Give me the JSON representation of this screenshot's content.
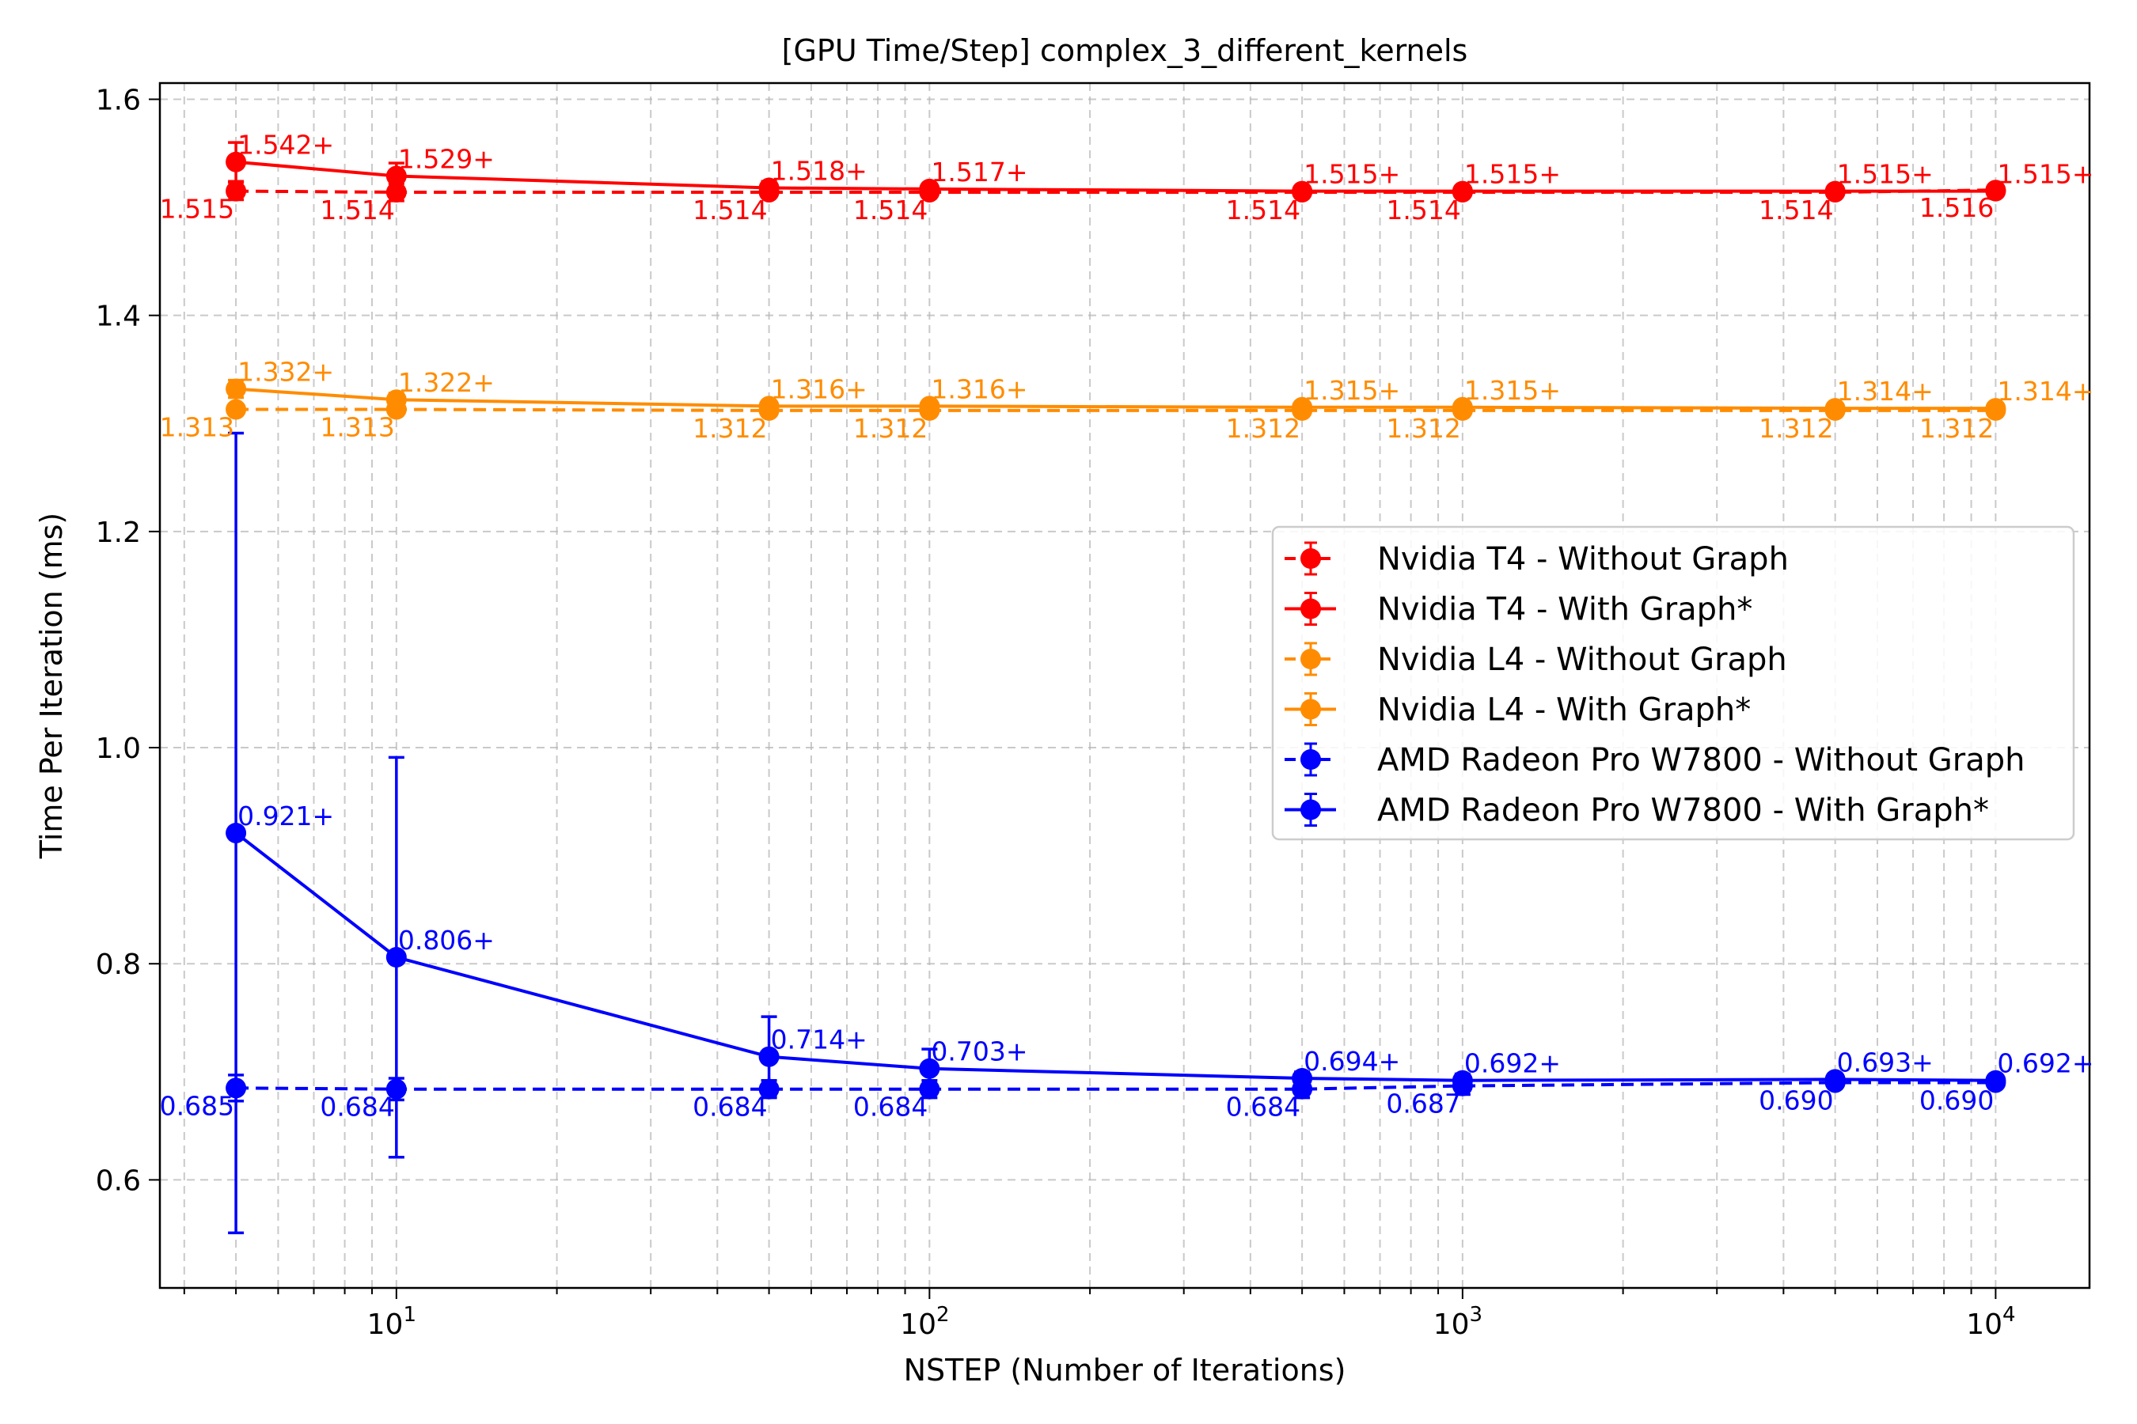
{
  "chart_data": {
    "type": "line",
    "title": "[GPU Time/Step] complex_3_different_kernels",
    "xlabel": "NSTEP (Number of Iterations)",
    "ylabel": "Time Per Iteration (ms)",
    "xscale": "log",
    "xlim": [
      3.6,
      15000
    ],
    "ylim": [
      0.5,
      1.615
    ],
    "grid": true,
    "legend_position": "center-right",
    "x": [
      5,
      10,
      50,
      100,
      500,
      1000,
      5000,
      10000
    ],
    "x_tick_labels": [
      "10^1",
      "10^2",
      "10^3",
      "10^4"
    ],
    "y_ticks": [
      "0.6",
      "0.8",
      "1.0",
      "1.2",
      "1.4",
      "1.6"
    ],
    "series": [
      {
        "name": "Nvidia T4 - Without Graph",
        "color": "#ff0000",
        "style": "dashed",
        "values": [
          1.515,
          1.514,
          1.514,
          1.514,
          1.514,
          1.514,
          1.514,
          1.516
        ],
        "labels": [
          "1.515",
          "1.514",
          "1.514",
          "1.514",
          "1.514",
          "1.514",
          "1.514",
          "1.516"
        ],
        "error": [
          0.008,
          0.008,
          0.003,
          0.002,
          0.002,
          0.002,
          0.002,
          0.002
        ]
      },
      {
        "name": "Nvidia T4 - With Graph*",
        "color": "#ff0000",
        "style": "solid",
        "values": [
          1.542,
          1.529,
          1.518,
          1.517,
          1.515,
          1.515,
          1.515,
          1.515
        ],
        "labels": [
          "1.542+",
          "1.529+",
          "1.518+",
          "1.517+",
          "1.515+",
          "1.515+",
          "1.515+",
          "1.515+"
        ],
        "error": [
          0.018,
          0.012,
          0.006,
          0.004,
          0.003,
          0.003,
          0.002,
          0.002
        ]
      },
      {
        "name": "Nvidia L4 - Without Graph",
        "color": "#ff8c00",
        "style": "dashed",
        "values": [
          1.313,
          1.313,
          1.312,
          1.312,
          1.312,
          1.312,
          1.312,
          1.312
        ],
        "labels": [
          "1.313",
          "1.313",
          "1.312",
          "1.312",
          "1.312",
          "1.312",
          "1.312",
          "1.312"
        ],
        "error": [
          0.004,
          0.003,
          0.002,
          0.002,
          0.002,
          0.002,
          0.002,
          0.002
        ]
      },
      {
        "name": "Nvidia L4 - With Graph*",
        "color": "#ff8c00",
        "style": "solid",
        "values": [
          1.332,
          1.322,
          1.316,
          1.316,
          1.315,
          1.315,
          1.314,
          1.314
        ],
        "labels": [
          "1.332+",
          "1.322+",
          "1.316+",
          "1.316+",
          "1.315+",
          "1.315+",
          "1.314+",
          "1.314+"
        ],
        "error": [
          0.008,
          0.006,
          0.003,
          0.003,
          0.002,
          0.002,
          0.002,
          0.002
        ]
      },
      {
        "name": "AMD Radeon Pro W7800 - Without Graph",
        "color": "#0000ff",
        "style": "dashed",
        "values": [
          0.685,
          0.684,
          0.684,
          0.684,
          0.684,
          0.687,
          0.69,
          0.69
        ],
        "labels": [
          "0.685",
          "0.684",
          "0.684",
          "0.684",
          "0.684",
          "0.687",
          "0.690",
          "0.690"
        ],
        "error": [
          0.012,
          0.01,
          0.008,
          0.008,
          0.008,
          0.008,
          0.004,
          0.004
        ]
      },
      {
        "name": "AMD Radeon Pro W7800 - With Graph*",
        "color": "#0000ff",
        "style": "solid",
        "values": [
          0.921,
          0.806,
          0.714,
          0.703,
          0.694,
          0.692,
          0.693,
          0.692
        ],
        "labels": [
          "0.921+",
          "0.806+",
          "0.714+",
          "0.703+",
          "0.694+",
          "0.692+",
          "0.693+",
          "0.692+"
        ],
        "error": [
          0.37,
          0.185,
          0.037,
          0.018,
          0.006,
          0.006,
          0.004,
          0.004
        ]
      }
    ]
  }
}
